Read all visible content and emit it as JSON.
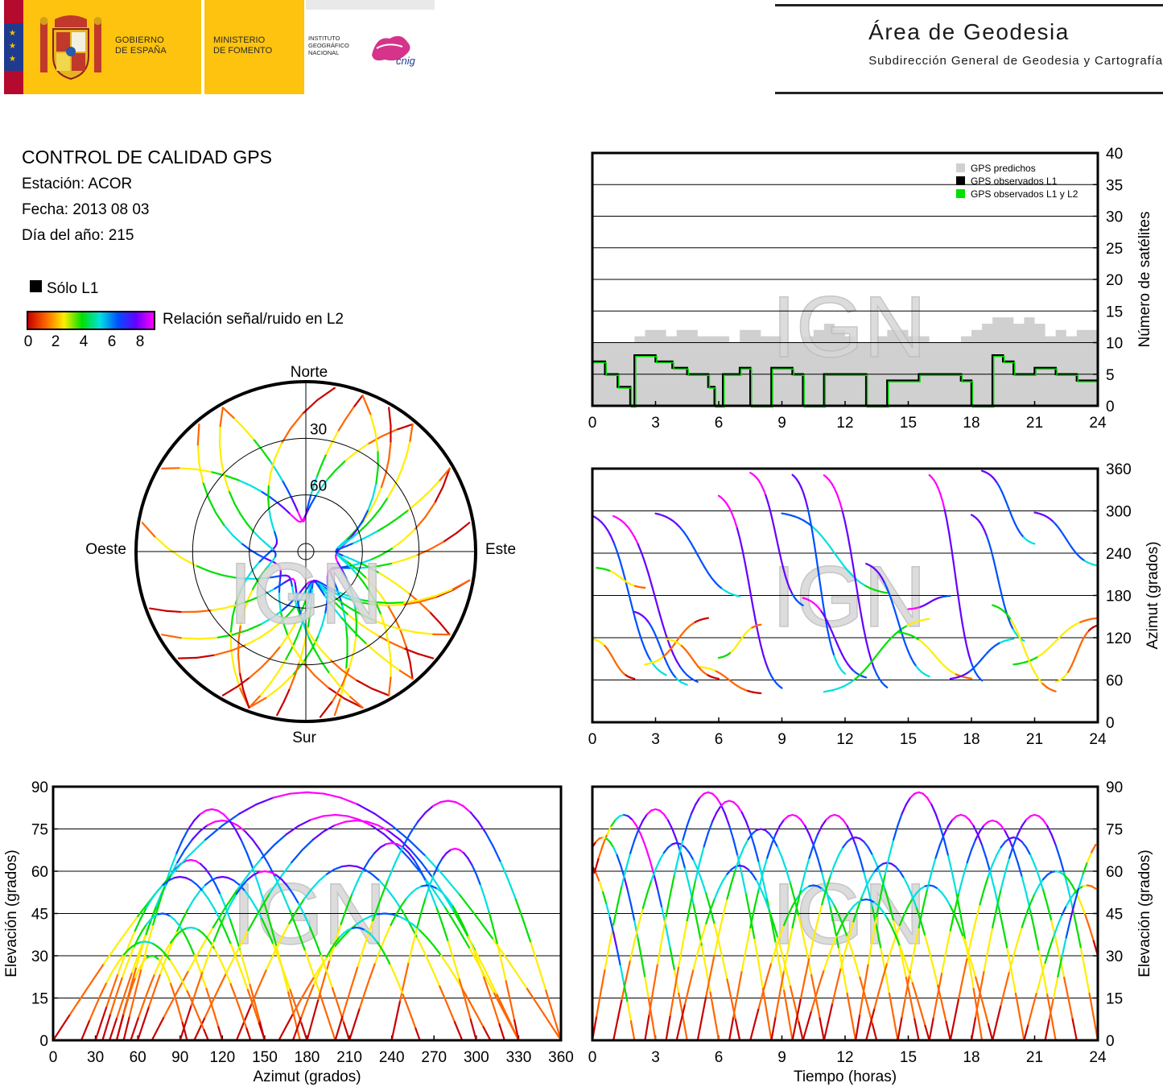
{
  "header": {
    "gov_line1": "GOBIERNO",
    "gov_line2": "DE ESPAÑA",
    "min_line1": "MINISTERIO",
    "min_line2": "DE FOMENTO",
    "ign_line1": "INSTITUTO",
    "ign_line2": "GEOGRÁFICO",
    "ign_line3": "NACIONAL",
    "cnig_label": "cnig",
    "title": "Área de Geodesia",
    "subtitle": "Subdirección General de Geodesia y Cartografía"
  },
  "info": {
    "title": "CONTROL DE CALIDAD GPS",
    "station": "Estación: ACOR",
    "date": "Fecha: 2013 08 03",
    "doy": "Día del año: 215",
    "l1_only": "Sólo L1",
    "snr_label": "Relación señal/ruido en L2",
    "snr_ticks": [
      "0",
      "2",
      "4",
      "6",
      "8"
    ]
  },
  "watermark": "IGN",
  "colors": {
    "snr_scale": [
      "#c80000",
      "#ff6600",
      "#ffee00",
      "#00e000",
      "#00e0e0",
      "#0050ff",
      "#6600ff",
      "#ff00ff"
    ],
    "predicted": "#d0d0d0",
    "l1": "#000000",
    "l1l2": "#00e000"
  },
  "chart_data": [
    {
      "type": "polar",
      "name": "skyplot",
      "direction_labels": {
        "north": "Norte",
        "south": "Sur",
        "east": "Este",
        "west": "Oeste"
      },
      "elevation_rings": [
        "30",
        "60"
      ]
    },
    {
      "type": "area",
      "name": "satellites",
      "ylabel": "Número de satélites",
      "xlim": [
        0,
        24
      ],
      "ylim": [
        0,
        40
      ],
      "x_ticks": [
        "0",
        "3",
        "6",
        "9",
        "12",
        "15",
        "18",
        "21",
        "24"
      ],
      "y_ticks": [
        "0",
        "5",
        "10",
        "15",
        "20",
        "25",
        "30",
        "35",
        "40"
      ],
      "legend": [
        "GPS predichos",
        "GPS observados L1",
        "GPS observados L1 y L2"
      ],
      "series": [
        {
          "name": "GPS predichos",
          "x": [
            0,
            0.5,
            1,
            1.5,
            2,
            2.5,
            3,
            3.5,
            4,
            4.5,
            5,
            5.5,
            6,
            6.5,
            7,
            7.5,
            8,
            8.5,
            9,
            9.5,
            10,
            10.5,
            11,
            11.5,
            12,
            12.5,
            13,
            13.5,
            14,
            14.5,
            15,
            15.5,
            16,
            16.5,
            17,
            17.5,
            18,
            18.5,
            19,
            19.5,
            20,
            20.5,
            21,
            21.5,
            22,
            22.5,
            23,
            23.5,
            24
          ],
          "values": [
            10,
            10,
            10,
            10,
            11,
            12,
            12,
            11,
            12,
            12,
            11,
            11,
            11,
            10,
            12,
            12,
            11,
            11,
            10,
            10,
            11,
            12,
            13,
            12,
            11,
            10,
            10,
            11,
            12,
            12,
            11,
            11,
            10,
            10,
            10,
            11,
            12,
            13,
            14,
            14,
            13,
            14,
            13,
            11,
            12,
            11,
            12,
            12,
            12
          ]
        },
        {
          "name": "GPS observados L1 y L2",
          "x": [
            0,
            0.6,
            1.2,
            1.8,
            2,
            3,
            3.8,
            4.5,
            5.5,
            5.8,
            6.2,
            7,
            7.5,
            8.5,
            9.5,
            10,
            11,
            12.2,
            13,
            14,
            15.5,
            17,
            17.5,
            18,
            19,
            19.5,
            20,
            21,
            22,
            23,
            24
          ],
          "values": [
            7,
            5,
            3,
            0,
            8,
            7,
            6,
            5,
            3,
            0,
            5,
            6,
            0,
            6,
            5,
            0,
            5,
            5,
            0,
            4,
            5,
            5,
            4,
            0,
            8,
            7,
            5,
            6,
            5,
            4,
            4
          ]
        }
      ]
    },
    {
      "type": "scatter",
      "name": "azimuth_vs_time",
      "ylabel": "Azimut (grados)",
      "xlim": [
        0,
        24
      ],
      "ylim": [
        0,
        360
      ],
      "x_ticks": [
        "0",
        "3",
        "6",
        "9",
        "12",
        "15",
        "18",
        "21",
        "24"
      ],
      "y_ticks": [
        "0",
        "60",
        "120",
        "180",
        "240",
        "300",
        "360"
      ]
    },
    {
      "type": "scatter",
      "name": "elevation_vs_azimuth",
      "xlabel": "Azimut (grados)",
      "ylabel": "Elevación (grados)",
      "xlim": [
        0,
        360
      ],
      "ylim": [
        0,
        90
      ],
      "x_ticks": [
        "0",
        "30",
        "60",
        "90",
        "120",
        "150",
        "180",
        "210",
        "240",
        "270",
        "300",
        "330",
        "360"
      ],
      "y_ticks": [
        "0",
        "15",
        "30",
        "45",
        "60",
        "75",
        "90"
      ]
    },
    {
      "type": "scatter",
      "name": "elevation_vs_time",
      "xlabel": "Tiempo (horas)",
      "ylabel": "Elevación (grados)",
      "xlim": [
        0,
        24
      ],
      "ylim": [
        0,
        90
      ],
      "x_ticks": [
        "0",
        "3",
        "6",
        "9",
        "12",
        "15",
        "18",
        "21",
        "24"
      ],
      "y_ticks": [
        "0",
        "15",
        "30",
        "45",
        "60",
        "75",
        "90"
      ]
    }
  ]
}
